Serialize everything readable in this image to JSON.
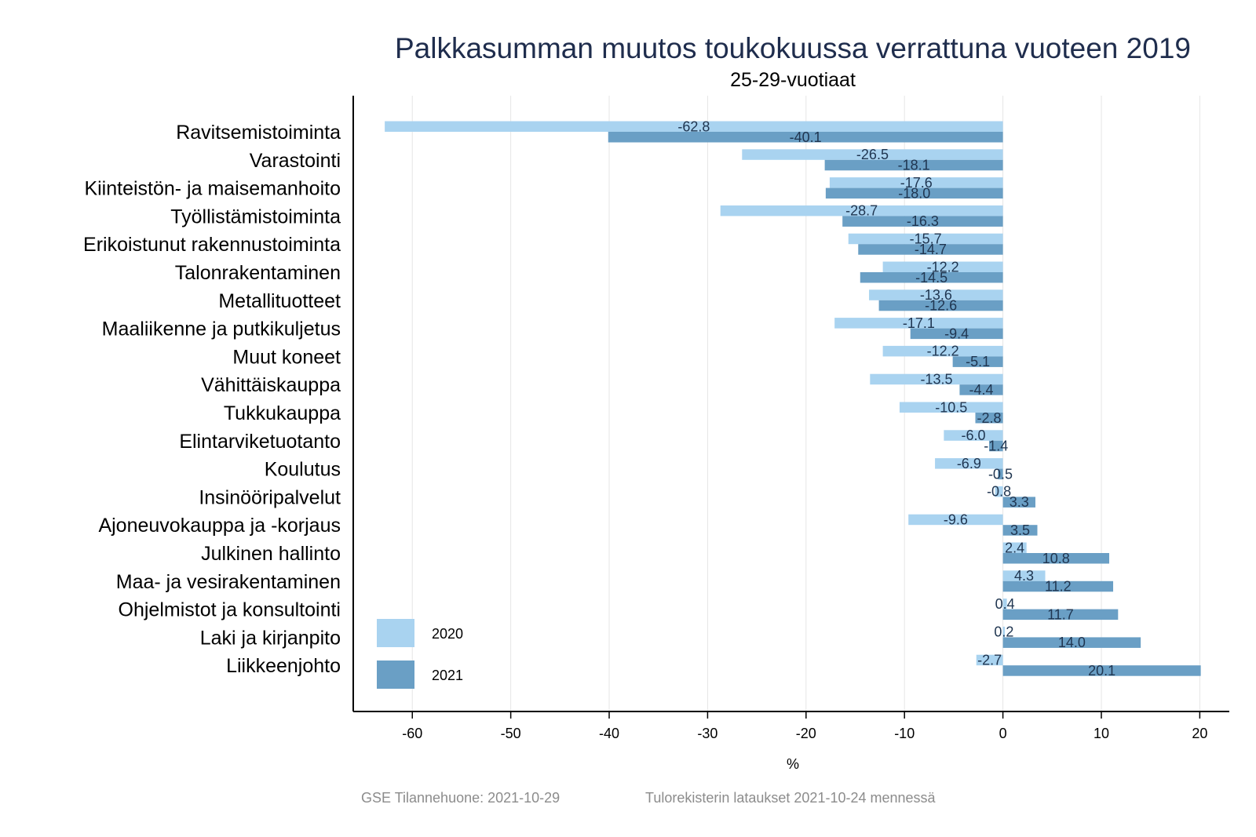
{
  "chart_data": {
    "type": "bar",
    "orientation": "horizontal",
    "title": "Palkkasumman muutos toukokuussa verrattuna vuoteen 2019",
    "subtitle": "25-29-vuotiaat",
    "xlabel": "%",
    "ylabel": "",
    "xlim": [
      -66,
      23
    ],
    "x_ticks": [
      -60,
      -50,
      -40,
      -30,
      -20,
      -10,
      0,
      10,
      20
    ],
    "x_tick_labels": [
      "-60",
      "-50",
      "-40",
      "-30",
      "-20",
      "-10",
      "0",
      "10",
      "20"
    ],
    "grid": "vertical",
    "legend_position": "bottom-left",
    "categories": [
      "Ravitsemistoiminta",
      "Varastointi",
      "Kiinteistön- ja maisemanhoito",
      "Työllistämistoiminta",
      "Erikoistunut rakennustoiminta",
      "Talonrakentaminen",
      "Metallituotteet",
      "Maaliikenne ja putkikuljetus",
      "Muut koneet",
      "Vähittäiskauppa",
      "Tukkukauppa",
      "Elintarviketuotanto",
      "Koulutus",
      "Insinööripalvelut",
      "Ajoneuvokauppa ja -korjaus",
      "Julkinen hallinto",
      "Maa- ja vesirakentaminen",
      "Ohjelmistot ja konsultointi",
      "Laki ja kirjanpito",
      "Liikkeenjohto"
    ],
    "series": [
      {
        "name": "2020",
        "color": "#a9d3f0",
        "values": [
          -62.8,
          -26.5,
          -17.6,
          -28.7,
          -15.7,
          -12.2,
          -13.6,
          -17.1,
          -12.2,
          -13.5,
          -10.5,
          -6.0,
          -6.9,
          -0.8,
          -9.6,
          2.4,
          4.3,
          0.4,
          0.2,
          -2.7
        ],
        "labels": [
          "-62.8",
          "-26.5",
          "-17.6",
          "-28.7",
          "-15.7",
          "-12.2",
          "-13.6",
          "-17.1",
          "-12.2",
          "-13.5",
          "-10.5",
          "-6.0",
          "-6.9",
          "-0.8",
          "-9.6",
          "2.4",
          "4.3",
          "0.4",
          "0.2",
          "-2.7"
        ]
      },
      {
        "name": "2021",
        "color": "#6a9fc5",
        "values": [
          -40.1,
          -18.1,
          -18.0,
          -16.3,
          -14.7,
          -14.5,
          -12.6,
          -9.4,
          -5.1,
          -4.4,
          -2.8,
          -1.4,
          -0.5,
          3.3,
          3.5,
          10.8,
          11.2,
          11.7,
          14.0,
          20.1
        ],
        "labels": [
          "-40.1",
          "-18.1",
          "-18.0",
          "-16.3",
          "-14.7",
          "-14.5",
          "-12.6",
          "-9.4",
          "-5.1",
          "-4.4",
          "-2.8",
          "-1.4",
          "-0.5",
          "3.3",
          "3.5",
          "10.8",
          "11.2",
          "11.7",
          "14.0",
          "20.1"
        ]
      }
    ],
    "footer": {
      "source": "GSE Tilannehuone: 2021-10-29",
      "note": "Tulorekisterin lataukset 2021-10-24 mennessä"
    }
  }
}
